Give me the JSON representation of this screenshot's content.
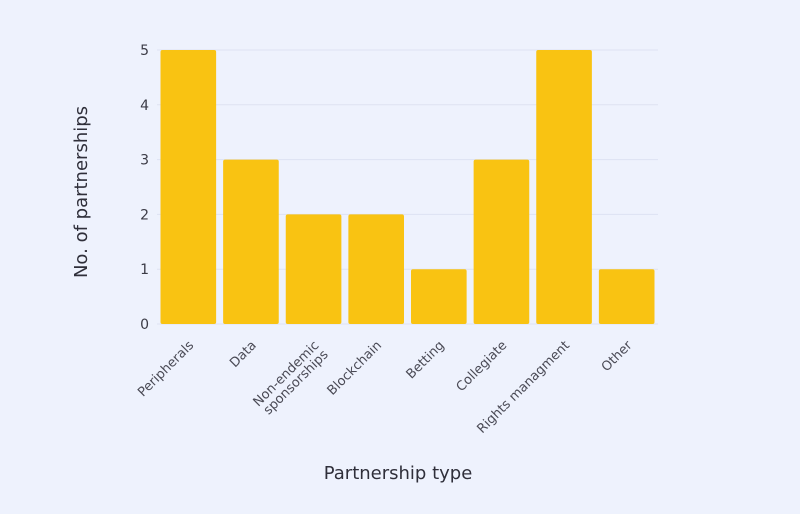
{
  "chart_data": {
    "type": "bar",
    "categories": [
      "Peripherals",
      "Data",
      "Non-endemic sponsorships",
      "Blockchain",
      "Betting",
      "Collegiate",
      "Rights managment",
      "Other"
    ],
    "category_lines": [
      [
        "Peripherals"
      ],
      [
        "Data"
      ],
      [
        "Non-endemic",
        "sponsorships"
      ],
      [
        "Blockchain"
      ],
      [
        "Betting"
      ],
      [
        "Collegiate"
      ],
      [
        "Rights managment"
      ],
      [
        "Other"
      ]
    ],
    "values": [
      5,
      3,
      2,
      2,
      1,
      3,
      5,
      1
    ],
    "xlabel": "Partnership type",
    "ylabel": "No. of partnerships",
    "ylim": [
      0,
      5
    ],
    "yticks": [
      0,
      1,
      2,
      3,
      4,
      5
    ],
    "grid": true,
    "colors": {
      "bar": "#f9c312",
      "background": "#eef2fd",
      "grid": "#dde2f2"
    }
  }
}
